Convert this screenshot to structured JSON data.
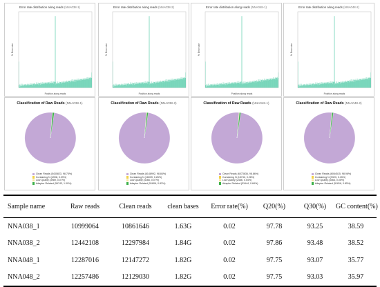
{
  "error_panels": [
    {
      "title": "Error rate distribution along reads",
      "sample": "(NNA038-1)",
      "ylabel": "% Error rate",
      "xlabel": "Position along reads"
    },
    {
      "title": "Error rate distribution along reads",
      "sample": "(NNA038-2)",
      "ylabel": "% Error rate",
      "xlabel": "Position along reads"
    },
    {
      "title": "Error rate distribution along reads",
      "sample": "(NNA048-1)",
      "ylabel": "% Error rate",
      "xlabel": "Position along reads"
    },
    {
      "title": "Error rate distribution along reads",
      "sample": "(NNA048-2)",
      "ylabel": "% Error rate",
      "xlabel": "Position along reads"
    }
  ],
  "pie_panels": [
    {
      "title": "Classification of Raw Reads",
      "sample": "(NNA038-1)",
      "legend": [
        "Clean Reads (5430823, 98.75%)",
        "Containing N (4998, 0.09%)",
        "Low Quality (3989, 0.07%)",
        "Adapter Related (59743, 1.09%)"
      ]
    },
    {
      "title": "Classification of Raw Reads",
      "sample": "(NNA038-2)",
      "legend": [
        "Clean Reads (6148992, 98.84%)",
        "Containing N (16039, 0.26%)",
        "Low Quality (4266, 0.07%)",
        "Adapter Related (51806, 0.83%)"
      ]
    },
    {
      "title": "Classification of Raw Reads",
      "sample": "(NNA048-1)",
      "legend": [
        "Clean Reads (6073636, 98.86%)",
        "Containing N (15742, 0.26%)",
        "Low Quality (2486, 0.04%)",
        "Adapter Related (51644, 0.84%)"
      ]
    },
    {
      "title": "Classification of Raw Reads",
      "sample": "(NNA048-2)",
      "legend": [
        "Clean Reads (6064515, 98.96%)",
        "Containing N (9323, 0.15%)",
        "Low Quality (3066, 0.05%)",
        "Adapter Related (51816, 0.85%)"
      ]
    }
  ],
  "colors": {
    "error_fill": "#4cc9a4",
    "clean": "#c3a8d6",
    "containing_n": "#f2d24a",
    "low_quality": "#f5e79e",
    "adapter": "#3cb04a",
    "panel_border": "#cfcfcf"
  },
  "table": {
    "headers": [
      "Sample name",
      "Raw reads",
      "Clean reads",
      "clean bases",
      "Error rate(%)",
      "Q20(%)",
      "Q30(%)",
      "GC content(%)"
    ],
    "rows": [
      [
        "NNA038_1",
        "10999064",
        "10861646",
        "1.63G",
        "0.02",
        "97.78",
        "93.25",
        "38.59"
      ],
      [
        "NNA038_2",
        "12442108",
        "12297984",
        "1.84G",
        "0.02",
        "97.86",
        "93.48",
        "38.52"
      ],
      [
        "NNA048_1",
        "12287016",
        "12147272",
        "1.82G",
        "0.02",
        "97.75",
        "93.07",
        "35.77"
      ],
      [
        "NNA048_2",
        "12257486",
        "12129030",
        "1.82G",
        "0.02",
        "97.75",
        "93.03",
        "35.97"
      ]
    ]
  },
  "chart_data": [
    {
      "type": "area",
      "title": "Error rate distribution along reads",
      "subtitle": "(NNA038-1)",
      "xlabel": "Position along reads",
      "ylabel": "% Error rate",
      "read_length": 150,
      "spike_positions": [
        1,
        150
      ],
      "base_error_pct_read1": [
        0.01,
        0.025
      ],
      "base_error_pct_read2": [
        0.02,
        0.045
      ]
    },
    {
      "type": "area",
      "title": "Error rate distribution along reads",
      "subtitle": "(NNA038-2)",
      "xlabel": "Position along reads",
      "ylabel": "% Error rate",
      "read_length": 150,
      "spike_positions": [
        1,
        150
      ],
      "base_error_pct_read1": [
        0.01,
        0.025
      ],
      "base_error_pct_read2": [
        0.02,
        0.045
      ]
    },
    {
      "type": "area",
      "title": "Error rate distribution along reads",
      "subtitle": "(NNA048-1)",
      "xlabel": "Position along reads",
      "ylabel": "% Error rate",
      "read_length": 150,
      "spike_positions": [
        1,
        150
      ],
      "base_error_pct_read1": [
        0.01,
        0.025
      ],
      "base_error_pct_read2": [
        0.02,
        0.045
      ]
    },
    {
      "type": "area",
      "title": "Error rate distribution along reads",
      "subtitle": "(NNA048-2)",
      "xlabel": "Position along reads",
      "ylabel": "% Error rate",
      "read_length": 150,
      "spike_positions": [
        1,
        150
      ],
      "base_error_pct_read1": [
        0.01,
        0.025
      ],
      "base_error_pct_read2": [
        0.02,
        0.045
      ]
    },
    {
      "type": "pie",
      "title": "Classification of Raw Reads",
      "subtitle": "(NNA038-1)",
      "labels": [
        "Clean Reads",
        "Containing N",
        "Low Quality",
        "Adapter Related"
      ],
      "values": [
        5430823,
        4998,
        3989,
        59743
      ],
      "percents": [
        98.75,
        0.09,
        0.07,
        1.09
      ]
    },
    {
      "type": "pie",
      "title": "Classification of Raw Reads",
      "subtitle": "(NNA038-2)",
      "labels": [
        "Clean Reads",
        "Containing N",
        "Low Quality",
        "Adapter Related"
      ],
      "values": [
        6148992,
        16039,
        4266,
        51806
      ],
      "percents": [
        98.84,
        0.26,
        0.07,
        0.83
      ]
    },
    {
      "type": "pie",
      "title": "Classification of Raw Reads",
      "subtitle": "(NNA048-1)",
      "labels": [
        "Clean Reads",
        "Containing N",
        "Low Quality",
        "Adapter Related"
      ],
      "values": [
        6073636,
        15742,
        2486,
        51644
      ],
      "percents": [
        98.86,
        0.26,
        0.04,
        0.84
      ]
    },
    {
      "type": "pie",
      "title": "Classification of Raw Reads",
      "subtitle": "(NNA048-2)",
      "labels": [
        "Clean Reads",
        "Containing N",
        "Low Quality",
        "Adapter Related"
      ],
      "values": [
        6064515,
        9323,
        3066,
        51816
      ],
      "percents": [
        98.96,
        0.15,
        0.05,
        0.85
      ]
    },
    {
      "type": "table",
      "columns": [
        "Sample name",
        "Raw reads",
        "Clean reads",
        "clean bases",
        "Error rate(%)",
        "Q20(%)",
        "Q30(%)",
        "GC content(%)"
      ],
      "rows": [
        [
          "NNA038_1",
          10999064,
          10861646,
          "1.63G",
          0.02,
          97.78,
          93.25,
          38.59
        ],
        [
          "NNA038_2",
          12442108,
          12297984,
          "1.84G",
          0.02,
          97.86,
          93.48,
          38.52
        ],
        [
          "NNA048_1",
          12287016,
          12147272,
          "1.82G",
          0.02,
          97.75,
          93.07,
          35.77
        ],
        [
          "NNA048_2",
          12257486,
          12129030,
          "1.82G",
          0.02,
          97.75,
          93.03,
          35.97
        ]
      ]
    }
  ]
}
